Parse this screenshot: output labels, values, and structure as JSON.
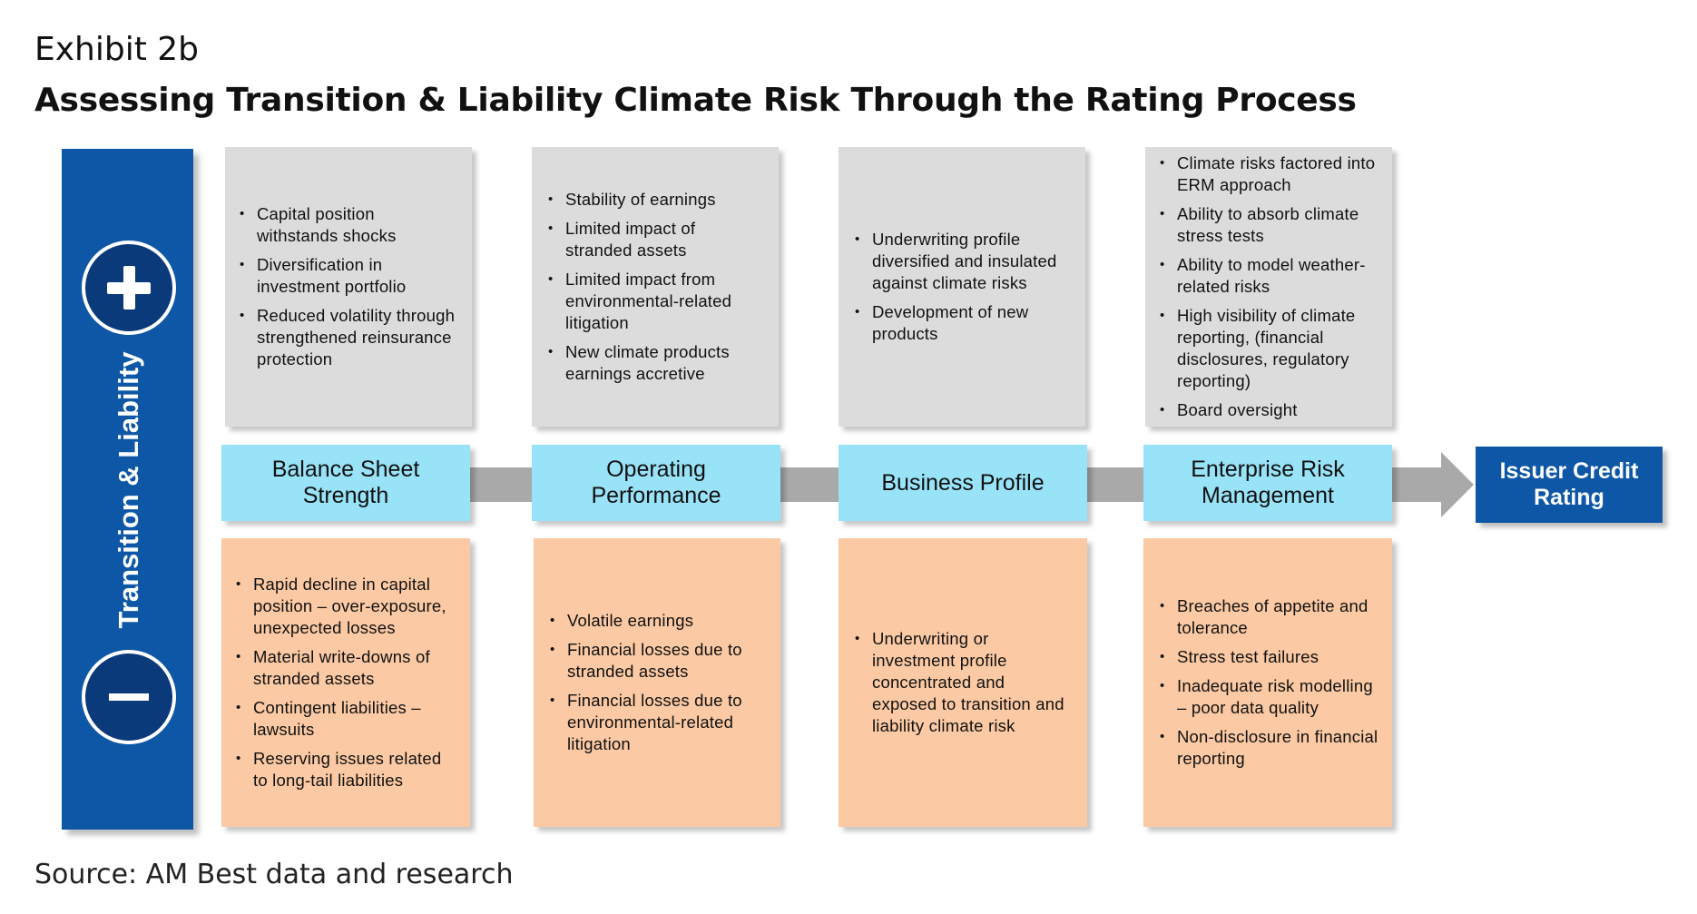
{
  "exhibit_label": "Exhibit 2b",
  "title": "Assessing Transition & Liability Climate Risk Through the Rating Process",
  "source": "Source: AM Best data and research",
  "side_bar": {
    "label": "Transition & Liability",
    "positive_icon": "plus-icon",
    "negative_icon": "minus-icon"
  },
  "colors": {
    "side_bar": "#0d57a6",
    "stage_box": "#99e3f8",
    "positive_box": "#dcdcdc",
    "negative_box": "#fbc9a3",
    "result_box": "#0d57a6",
    "connector": "#a9a9a9"
  },
  "stages": [
    {
      "label": "Balance Sheet Strength",
      "positives": [
        "Capital position withstands shocks",
        "Diversification in investment portfolio",
        "Reduced volatility through strengthened reinsurance protection"
      ],
      "negatives": [
        "Rapid decline in capital position – over-exposure, unexpected losses",
        "Material write-downs of stranded assets",
        "Contingent liabilities – lawsuits",
        "Reserving issues related to long-tail liabilities"
      ]
    },
    {
      "label": "Operating Performance",
      "positives": [
        "Stability of earnings",
        "Limited impact of stranded assets",
        "Limited impact from environmental-related litigation",
        "New climate products earnings accretive"
      ],
      "negatives": [
        "Volatile earnings",
        "Financial losses due to stranded assets",
        "Financial losses due to environmental-related litigation"
      ]
    },
    {
      "label": "Business Profile",
      "positives": [
        "Underwriting profile diversified and insulated against climate risks",
        "Development of new products"
      ],
      "negatives": [
        "Underwriting or investment profile concentrated and exposed to transition and liability climate risk"
      ]
    },
    {
      "label": "Enterprise Risk Management",
      "positives": [
        "Climate risks factored into ERM approach",
        "Ability to absorb climate stress tests",
        "Ability to model weather-related risks",
        "High visibility of climate reporting, (financial disclosures, regulatory reporting)",
        "Board oversight"
      ],
      "negatives": [
        "Breaches of appetite and tolerance",
        "Stress test failures",
        "Inadequate risk modelling – poor data quality",
        "Non-disclosure in financial reporting"
      ]
    }
  ],
  "result": "Issuer Credit Rating"
}
